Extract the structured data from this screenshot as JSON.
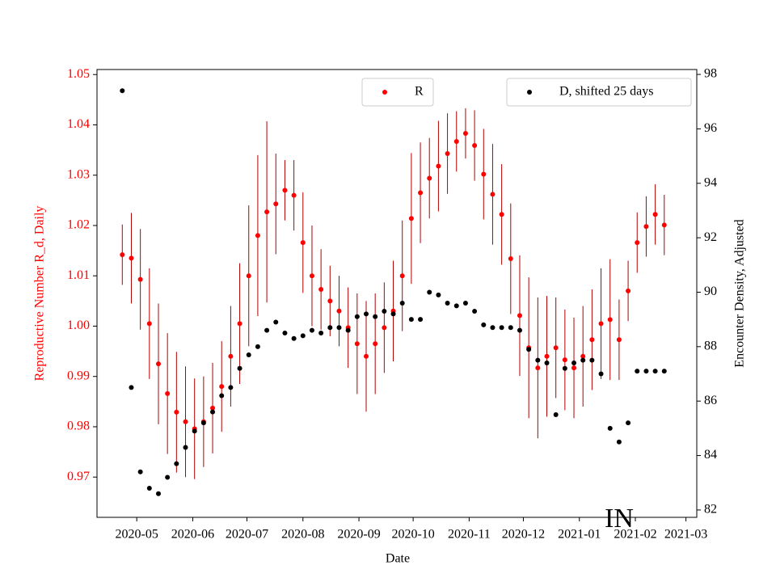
{
  "chart_data": {
    "type": "scatter",
    "xlabel": "Date",
    "ylabel": "Reproductive Number R_d, Daily",
    "y2label": "Encounter Density, Adjusted",
    "annotation": "IN",
    "x": [
      "2020-04-23",
      "2020-04-28",
      "2020-05-03",
      "2020-05-08",
      "2020-05-13",
      "2020-05-18",
      "2020-05-23",
      "2020-05-28",
      "2020-06-02",
      "2020-06-07",
      "2020-06-12",
      "2020-06-17",
      "2020-06-22",
      "2020-06-27",
      "2020-07-02",
      "2020-07-07",
      "2020-07-12",
      "2020-07-17",
      "2020-07-22",
      "2020-07-27",
      "2020-08-01",
      "2020-08-06",
      "2020-08-11",
      "2020-08-16",
      "2020-08-21",
      "2020-08-26",
      "2020-08-31",
      "2020-09-05",
      "2020-09-10",
      "2020-09-15",
      "2020-09-20",
      "2020-09-25",
      "2020-09-30",
      "2020-10-05",
      "2020-10-10",
      "2020-10-15",
      "2020-10-20",
      "2020-10-25",
      "2020-10-30",
      "2020-11-04",
      "2020-11-09",
      "2020-11-14",
      "2020-11-19",
      "2020-11-24",
      "2020-11-29",
      "2020-12-04",
      "2020-12-09",
      "2020-12-14",
      "2020-12-19",
      "2020-12-24",
      "2020-12-29",
      "2021-01-03",
      "2021-01-08",
      "2021-01-13",
      "2021-01-18",
      "2021-01-23",
      "2021-01-28",
      "2021-02-02",
      "2021-02-07",
      "2021-02-12",
      "2021-02-17"
    ],
    "series": [
      {
        "name": "R",
        "color": "red",
        "error_color": "#b00000",
        "axis": "y",
        "values": [
          1.0142,
          1.0135,
          1.0093,
          1.0005,
          0.9925,
          0.9866,
          0.9829,
          0.981,
          0.9796,
          0.981,
          0.9837,
          0.988,
          0.994,
          1.0005,
          1.01,
          1.018,
          1.0227,
          1.0243,
          1.027,
          1.026,
          1.0166,
          1.01,
          1.0073,
          1.005,
          1.003,
          0.9997,
          0.9965,
          0.994,
          0.9965,
          0.9997,
          1.003,
          1.01,
          1.0214,
          1.0265,
          1.0294,
          1.0318,
          1.0343,
          1.0367,
          1.0383,
          1.0359,
          1.0302,
          1.0262,
          1.0222,
          1.0134,
          1.0021,
          0.9957,
          0.9917,
          0.994,
          0.9957,
          0.9933,
          0.9917,
          0.994,
          0.9973,
          1.0005,
          1.0013,
          0.9973,
          1.007,
          1.0166,
          1.0198,
          1.0222,
          1.0201
        ],
        "errors": [
          0.006,
          0.009,
          0.01,
          0.011,
          0.012,
          0.012,
          0.012,
          0.011,
          0.01,
          0.009,
          0.009,
          0.009,
          0.01,
          0.012,
          0.014,
          0.016,
          0.018,
          0.01,
          0.006,
          0.007,
          0.01,
          0.01,
          0.008,
          0.007,
          0.007,
          0.008,
          0.01,
          0.011,
          0.01,
          0.009,
          0.01,
          0.011,
          0.013,
          0.01,
          0.008,
          0.009,
          0.008,
          0.006,
          0.005,
          0.007,
          0.009,
          0.01,
          0.01,
          0.011,
          0.012,
          0.014,
          0.014,
          0.012,
          0.01,
          0.01,
          0.01,
          0.01,
          0.01,
          0.011,
          0.012,
          0.008,
          0.006,
          0.006,
          0.006,
          0.006,
          0.006
        ]
      },
      {
        "name": "D, shifted 25 days",
        "color": "black",
        "axis": "y2",
        "values": [
          97.4,
          86.5,
          83.4,
          82.8,
          82.6,
          83.2,
          83.7,
          84.3,
          84.9,
          85.2,
          85.6,
          86.2,
          86.5,
          87.2,
          87.7,
          88.0,
          88.6,
          88.9,
          88.5,
          88.3,
          88.4,
          88.6,
          88.5,
          88.7,
          88.7,
          88.6,
          89.1,
          89.2,
          89.1,
          89.3,
          89.2,
          89.6,
          89.0,
          89.0,
          90.0,
          89.9,
          89.6,
          89.5,
          89.6,
          89.3,
          88.8,
          88.7,
          88.7,
          88.7,
          88.6,
          87.9,
          87.5,
          87.4,
          85.5,
          87.2,
          87.4,
          87.5,
          87.5,
          87.0,
          85.0,
          84.5,
          85.2,
          87.1,
          87.1,
          87.1,
          87.1
        ]
      }
    ],
    "xlim": [
      "2020-04-09",
      "2021-03-07"
    ],
    "xticks": [
      {
        "value": "2020-05-01",
        "label": "2020-05"
      },
      {
        "value": "2020-06-01",
        "label": "2020-06"
      },
      {
        "value": "2020-07-01",
        "label": "2020-07"
      },
      {
        "value": "2020-08-01",
        "label": "2020-08"
      },
      {
        "value": "2020-09-01",
        "label": "2020-09"
      },
      {
        "value": "2020-10-01",
        "label": "2020-10"
      },
      {
        "value": "2020-11-01",
        "label": "2020-11"
      },
      {
        "value": "2020-12-01",
        "label": "2020-12"
      },
      {
        "value": "2021-01-01",
        "label": "2021-01"
      },
      {
        "value": "2021-02-01",
        "label": "2021-02"
      },
      {
        "value": "2021-03-01",
        "label": "2021-03"
      }
    ],
    "ylim": [
      0.962,
      1.051
    ],
    "yticks": [
      0.97,
      0.98,
      0.99,
      {
        "value": 1,
        "label": "1.00"
      },
      1.01,
      1.02,
      1.03,
      1.04,
      1.05
    ],
    "y2lim": [
      81.73,
      98.18
    ],
    "y2ticks": [
      82,
      84,
      86,
      88,
      90,
      92,
      94,
      96,
      98
    ],
    "ytick_color": "red"
  }
}
